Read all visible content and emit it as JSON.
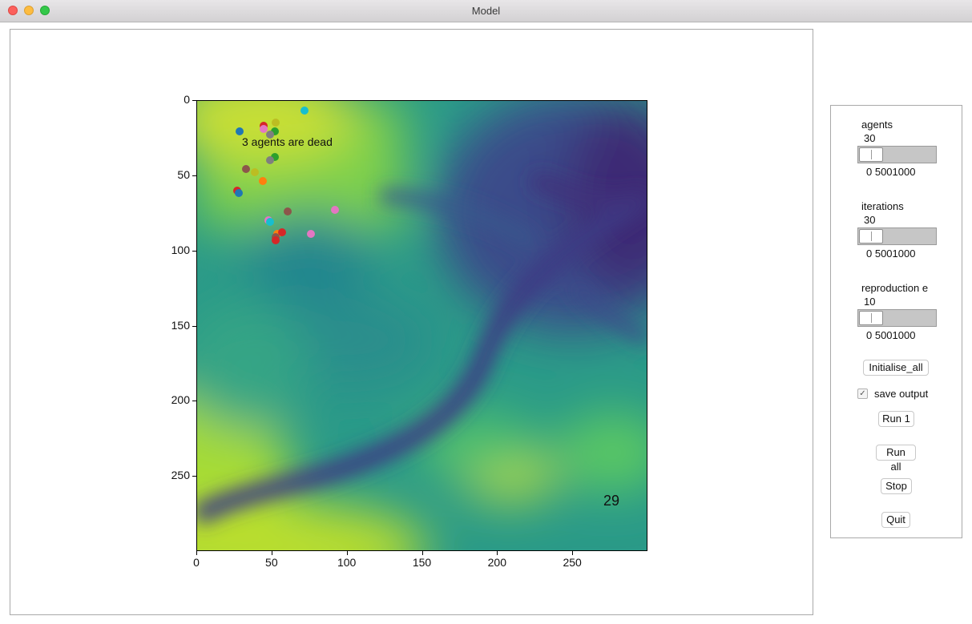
{
  "window": {
    "title": "Model"
  },
  "plot": {
    "dead_text": "3 agents are dead",
    "iteration_display": "29",
    "y_ticks": [
      "0",
      "50",
      "100",
      "150",
      "200",
      "250"
    ],
    "x_ticks": [
      "0",
      "50",
      "100",
      "150",
      "200",
      "250"
    ],
    "colormap_colors": [
      "#440154",
      "#3b528b",
      "#21918c",
      "#5ec962",
      "#fde725"
    ]
  },
  "chart_data": {
    "type": "scatter",
    "title": "",
    "xlabel": "",
    "ylabel": "",
    "xlim": [
      0,
      300
    ],
    "ylim": [
      300,
      0
    ],
    "background": "elevation heatmap (viridis)",
    "annotations": [
      "3 agents are dead",
      "29"
    ],
    "points": [
      {
        "x": 72,
        "y": 7,
        "color": "#17becf"
      },
      {
        "x": 53,
        "y": 15,
        "color": "#bcbd22"
      },
      {
        "x": 45,
        "y": 17,
        "color": "#d62728"
      },
      {
        "x": 45,
        "y": 19,
        "color": "#e377c2"
      },
      {
        "x": 29,
        "y": 21,
        "color": "#1f77b4"
      },
      {
        "x": 52,
        "y": 21,
        "color": "#2ca02c"
      },
      {
        "x": 49,
        "y": 23,
        "color": "#7f7f7f"
      },
      {
        "x": 52,
        "y": 38,
        "color": "#2ca02c"
      },
      {
        "x": 49,
        "y": 40,
        "color": "#7f7f7f"
      },
      {
        "x": 33,
        "y": 46,
        "color": "#8c564b"
      },
      {
        "x": 39,
        "y": 48,
        "color": "#bcbd22"
      },
      {
        "x": 44,
        "y": 54,
        "color": "#ff7f0e"
      },
      {
        "x": 27,
        "y": 60,
        "color": "#d62728"
      },
      {
        "x": 28,
        "y": 62,
        "color": "#1f77b4"
      },
      {
        "x": 92,
        "y": 73,
        "color": "#e377c2"
      },
      {
        "x": 61,
        "y": 74,
        "color": "#8c564b"
      },
      {
        "x": 48,
        "y": 80,
        "color": "#e377c2"
      },
      {
        "x": 49,
        "y": 81,
        "color": "#17becf"
      },
      {
        "x": 54,
        "y": 89,
        "color": "#ff7f0e"
      },
      {
        "x": 57,
        "y": 88,
        "color": "#d62728"
      },
      {
        "x": 76,
        "y": 89,
        "color": "#e377c2"
      },
      {
        "x": 53,
        "y": 91,
        "color": "#8c564b"
      },
      {
        "x": 53,
        "y": 93,
        "color": "#d62728"
      }
    ]
  },
  "controls": {
    "sliders": [
      {
        "label": "agents",
        "value": "30",
        "range": "0    5001000"
      },
      {
        "label": "iterations",
        "value": "30",
        "range": "0    5001000"
      },
      {
        "label": "reproduction e",
        "value": "10",
        "range": "0    5001000"
      }
    ],
    "initialise_label": "Initialise_all",
    "save_output_label": "save output",
    "save_output_checked": "✓",
    "run1_label": "Run 1",
    "runall_label": "Run all",
    "stop_label": "Stop",
    "quit_label": "Quit"
  }
}
